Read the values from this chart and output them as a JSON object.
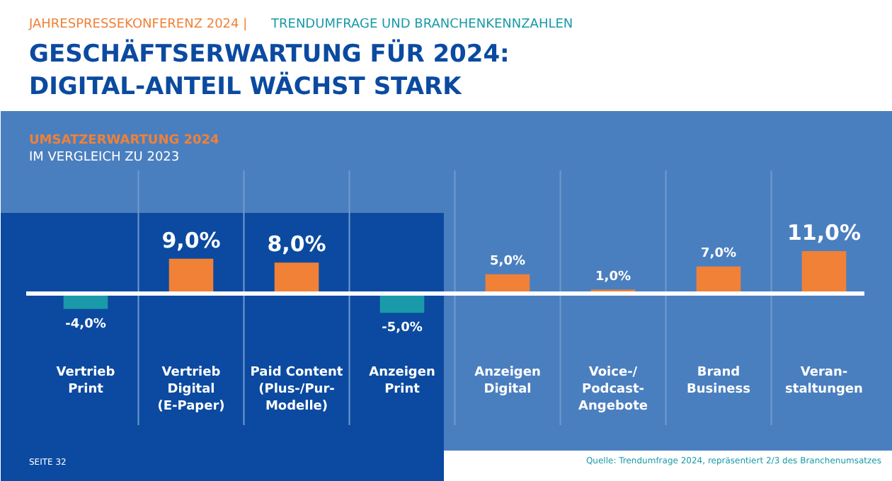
{
  "chart_data": {
    "type": "bar",
    "title": "GESCHÄFTSERWARTUNG FÜR 2024:\nDIGITAL-ANTEIL WÄCHST STARK",
    "subtitle": "UMSATZERWARTUNG 2024",
    "annotations": [
      "JAHRESPRESSEKONFERENZ 2024 |",
      "TRENDUMFRAGE UND BRANCHENKENNZAHLEN",
      "IM VERGLEICH ZU 2023",
      "SEITE 32",
      "Quelle: Trendumfrage 2024, repräsentiert 2/3 des Branchenumsatzes"
    ],
    "categories": [
      "Vertrieb\nPrint",
      "Vertrieb\nDigital\n(E-Paper)",
      "Paid Content\n(Plus-/Pur-\nModelle)",
      "Anzeigen\nPrint",
      "Anzeigen\nDigital",
      "Voice-/\nPodcast-\nAngebote",
      "Brand\nBusiness",
      "Veran-\nstaltungen"
    ],
    "values": [
      -4.0,
      9.0,
      8.0,
      -5.0,
      5.0,
      1.0,
      7.0,
      11.0
    ],
    "colors": [
      "#1a9aa8",
      "#f08137",
      "#f08137",
      "#1a9aa8",
      "#f08137",
      "#f08137",
      "#f08137",
      "#f08137"
    ],
    "value_labels": [
      "-4,0%",
      "9,0%",
      "8,0%",
      "-5,0%",
      "5,0%",
      "1,0%",
      "7,0%",
      "11,0%"
    ],
    "grid": "x"
  }
}
